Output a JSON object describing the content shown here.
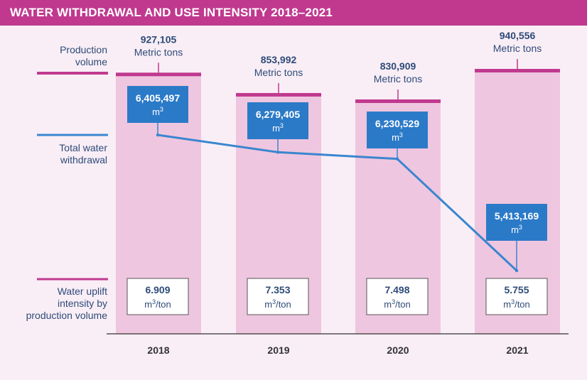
{
  "header": {
    "title": "WATER WITHDRAWAL AND USE INTENSITY 2018–2021"
  },
  "row_labels": {
    "production": [
      "Production",
      "volume"
    ],
    "withdrawal": [
      "Total water",
      "withdrawal"
    ],
    "intensity": [
      "Water uplift",
      "intensity by",
      "production volume"
    ]
  },
  "chart_data": {
    "type": "bar",
    "title": "WATER WITHDRAWAL AND USE INTENSITY 2018–2021",
    "categories": [
      "2018",
      "2019",
      "2020",
      "2021"
    ],
    "series": [
      {
        "name": "Production volume",
        "unit": "Metric tons",
        "values": [
          927105,
          853992,
          830909,
          940556
        ],
        "labels": [
          "927,105",
          "853,992",
          "830,909",
          "940,556"
        ]
      },
      {
        "name": "Total water withdrawal",
        "unit": "m3",
        "values": [
          6405497,
          6279405,
          6230529,
          5413169
        ],
        "labels": [
          "6,405,497",
          "6,279,405",
          "6,230,529",
          "5,413,169"
        ]
      },
      {
        "name": "Water uplift intensity by production volume",
        "unit": "m3/ton",
        "values": [
          6.909,
          7.353,
          7.498,
          5.755
        ],
        "labels": [
          "6.909",
          "7.353",
          "7.498",
          "5.755"
        ]
      }
    ],
    "unit_labels": {
      "production": "Metric tons",
      "withdrawal": "m",
      "withdrawal_sup": "3",
      "intensity_pre": "m",
      "intensity_sup": "3",
      "intensity_post": "/ton"
    },
    "colors": {
      "header": "#c0398f",
      "bar": "#efc6df",
      "bar_cap": "#c0398f",
      "line": "#3a86cf",
      "box": "#2b7ac8",
      "text_dark": "#2e4b78"
    }
  }
}
